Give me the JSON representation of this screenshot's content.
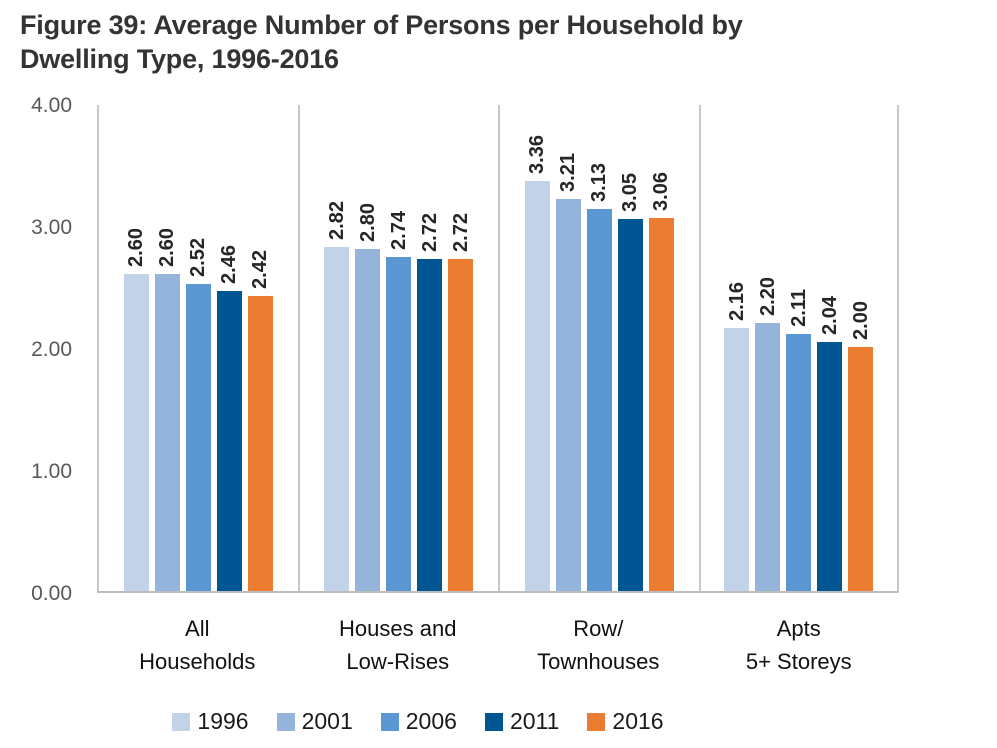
{
  "title_lines": [
    "Figure 39: Average Number of Persons per Household by",
    "Dwelling Type, 1996-2016"
  ],
  "chart_data": {
    "type": "bar",
    "title": "Figure 39: Average Number of Persons per Household by Dwelling Type, 1996-2016",
    "xlabel": "",
    "ylabel": "",
    "ylim": [
      0,
      4
    ],
    "yticks": [
      {
        "value": 4,
        "label": "4.00"
      },
      {
        "value": 3,
        "label": "3.00"
      },
      {
        "value": 2,
        "label": "2.00"
      },
      {
        "value": 1,
        "label": "1.00"
      },
      {
        "value": 0,
        "label": "0.00"
      }
    ],
    "grid": "vertical category separators only",
    "legend_position": "bottom",
    "value_labels": "rotated 90deg above each bar, two decimals",
    "categories": [
      "All Households",
      "Houses and Low-Rises",
      "Row/ Townhouses",
      "Apts 5+ Storeys"
    ],
    "category_label_lines": [
      [
        "All",
        "Households"
      ],
      [
        "Houses and",
        "Low-Rises"
      ],
      [
        "Row/",
        "Townhouses"
      ],
      [
        "Apts",
        "5+ Storeys"
      ]
    ],
    "series": [
      {
        "name": "1996",
        "color": "#C2D2E9",
        "values": [
          2.6,
          2.82,
          3.36,
          2.16
        ]
      },
      {
        "name": "2001",
        "color": "#95B4DB",
        "values": [
          2.6,
          2.8,
          3.21,
          2.2
        ]
      },
      {
        "name": "2006",
        "color": "#5B97D3",
        "values": [
          2.52,
          2.74,
          3.13,
          2.11
        ]
      },
      {
        "name": "2011",
        "color": "#005693",
        "values": [
          2.46,
          2.72,
          3.05,
          2.04
        ]
      },
      {
        "name": "2016",
        "color": "#EA7D31",
        "values": [
          2.42,
          2.72,
          3.06,
          2.0
        ]
      }
    ]
  },
  "colors": {
    "title_text": "#333333",
    "axis_tick_text": "#595959",
    "category_text": "#111111",
    "value_label_text": "#262626",
    "separator_line": "#C9C7C5",
    "axis_line": "#BDBDBD",
    "background": "#FFFFFF"
  }
}
